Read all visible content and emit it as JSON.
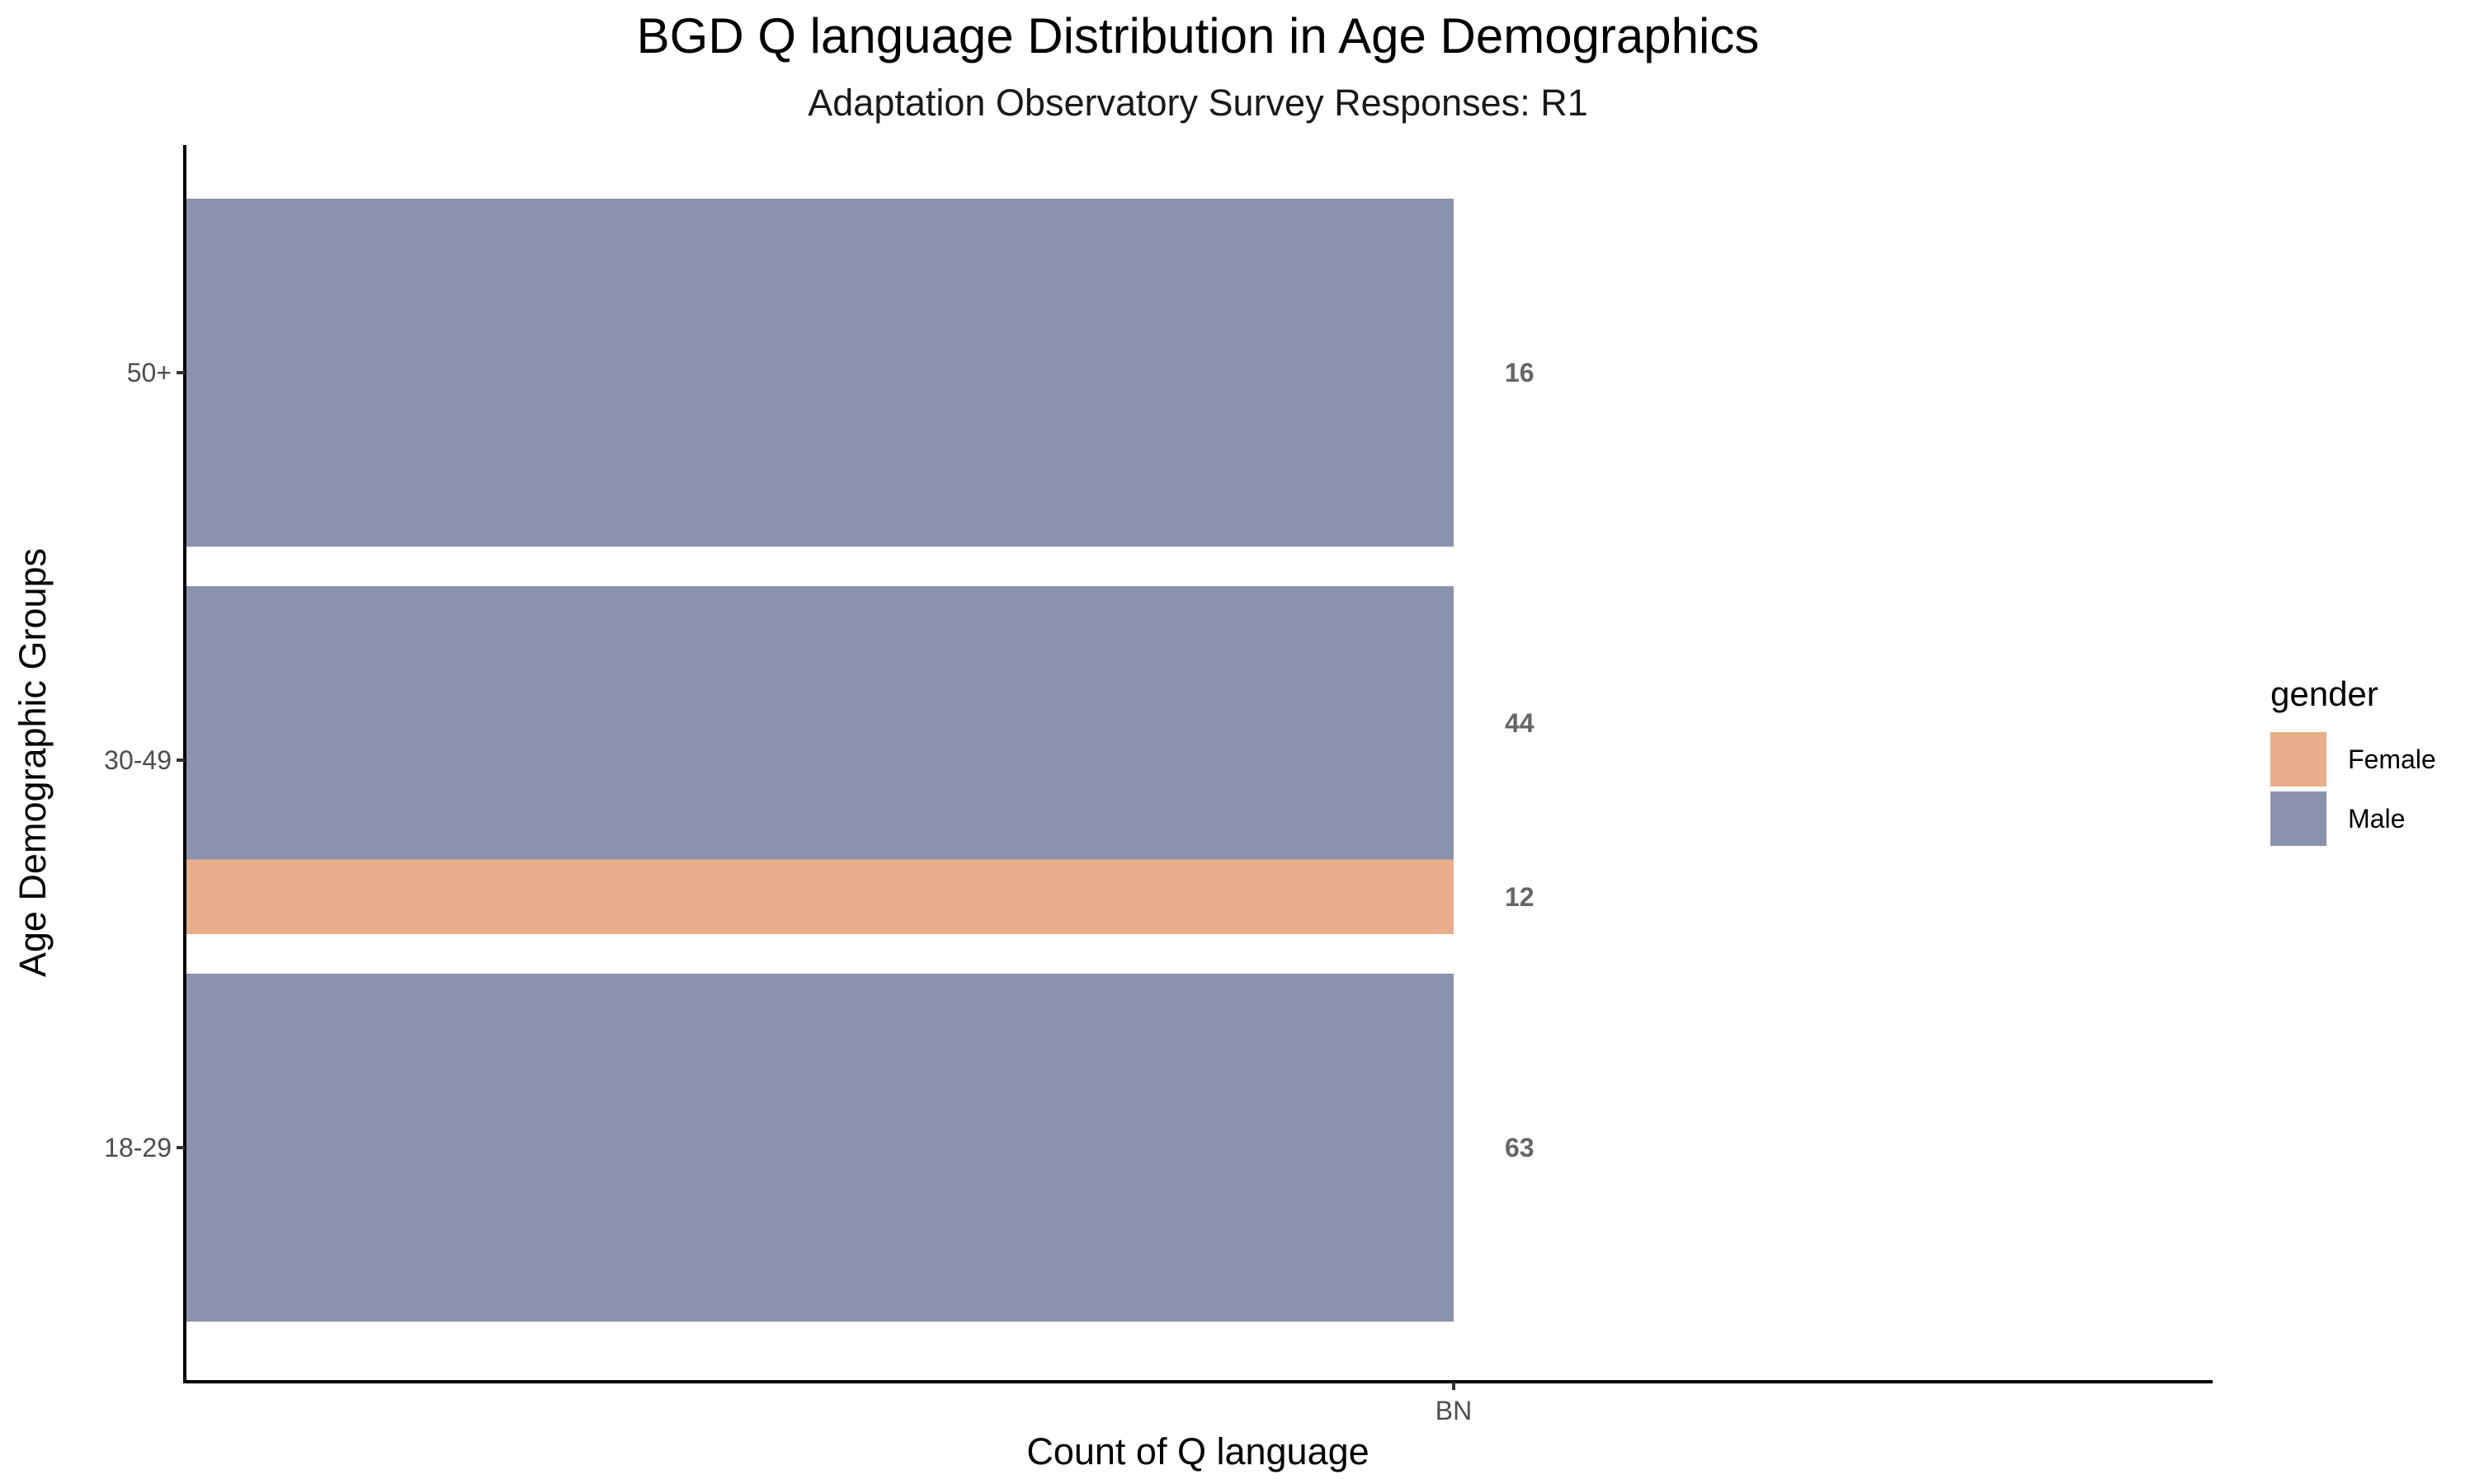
{
  "chart_data": {
    "type": "bar",
    "orientation": "horizontal",
    "stacked": true,
    "title": "BGD Q language Distribution in Age Demographics",
    "subtitle": "Adaptation Observatory Survey Responses: R1",
    "xlabel": "Count of Q language",
    "ylabel": "Age Demographic Groups",
    "x_categories": [
      "BN"
    ],
    "y_categories": [
      "18-29",
      "30-49",
      "50+"
    ],
    "legend": {
      "title": "gender",
      "position": "right",
      "entries": [
        {
          "name": "Female",
          "color": "#E8AE8A"
        },
        {
          "name": "Male",
          "color": "#8B92AC"
        }
      ]
    },
    "series": [
      {
        "name": "Male",
        "color": "#8B92AC",
        "values": [
          {
            "age": "18-29",
            "x": "BN",
            "count": 63
          },
          {
            "age": "30-49",
            "x": "BN",
            "count": 44
          },
          {
            "age": "50+",
            "x": "BN",
            "count": 16
          }
        ]
      },
      {
        "name": "Female",
        "color": "#E8AE8A",
        "values": [
          {
            "age": "30-49",
            "x": "BN",
            "count": 12
          }
        ]
      }
    ],
    "data_labels": [
      {
        "age": "50+",
        "gender": "Male",
        "text": "16"
      },
      {
        "age": "30-49",
        "gender": "Male",
        "text": "44"
      },
      {
        "age": "30-49",
        "gender": "Female",
        "text": "12"
      },
      {
        "age": "18-29",
        "gender": "Male",
        "text": "63"
      }
    ],
    "grid": false
  }
}
